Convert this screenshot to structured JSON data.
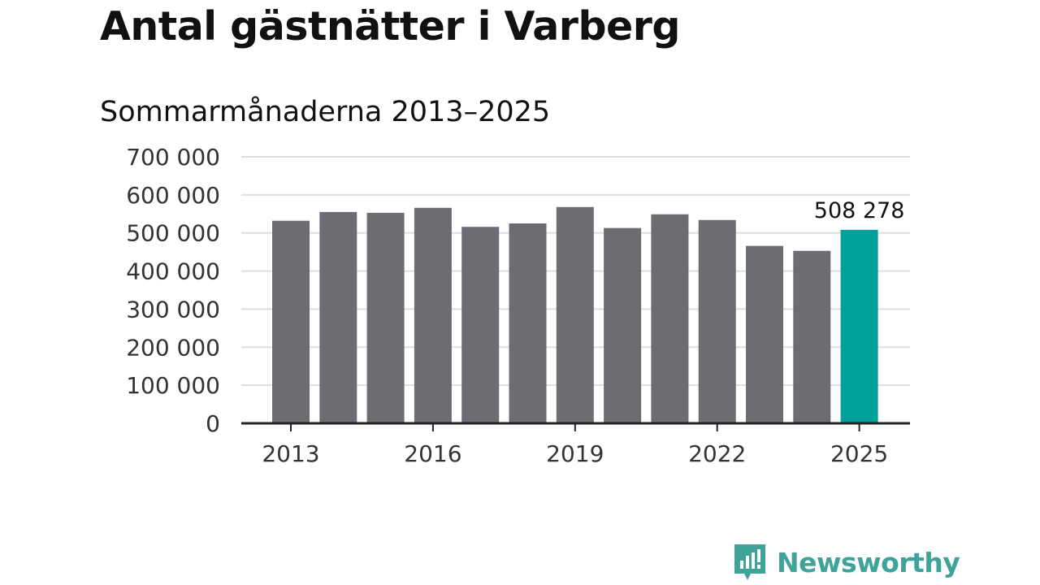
{
  "title": "Antal gästnätter i Varberg",
  "subtitle": "Sommarmånaderna 2013–2025",
  "chart_data": {
    "type": "bar",
    "categories": [
      "2013",
      "2014",
      "2015",
      "2016",
      "2017",
      "2018",
      "2019",
      "2020",
      "2021",
      "2022",
      "2023",
      "2024",
      "2025"
    ],
    "values": [
      532000,
      555000,
      553000,
      566000,
      516000,
      525000,
      568000,
      513000,
      549000,
      534000,
      466000,
      453000,
      508278
    ],
    "x_tick_labels": [
      "2013",
      "2016",
      "2019",
      "2022",
      "2025"
    ],
    "y_tick_labels": [
      "0",
      "100 000",
      "200 000",
      "300 000",
      "400 000",
      "500 000",
      "600 000",
      "700 000"
    ],
    "ylim": [
      0,
      700000
    ],
    "grid": true,
    "annotation": {
      "category": "2025",
      "label": "508 278"
    },
    "colors": {
      "bar": "#6d6c72",
      "highlight": "#00a19a",
      "grid": "#dddddd",
      "axis": "#222222",
      "text": "#333333"
    }
  },
  "logo": {
    "text": "Newsworthy",
    "icon": "newsworthy-bar-chart-logo-icon",
    "color": "#3fa39a"
  }
}
